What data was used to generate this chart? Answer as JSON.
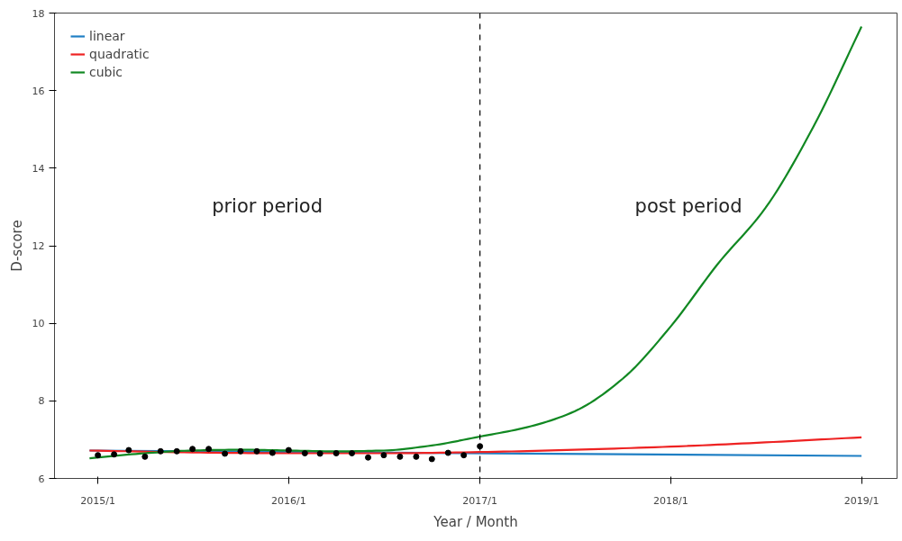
{
  "chart_data": {
    "type": "line",
    "xlabel": "Year / Month",
    "ylabel": "D-score",
    "xlim": [
      "2014-10-10",
      "2019-03-10"
    ],
    "ylim": [
      6,
      18
    ],
    "xticks": [
      {
        "value": "2015-01",
        "label": "2015/1"
      },
      {
        "value": "2016-01",
        "label": "2016/1"
      },
      {
        "value": "2017-01",
        "label": "2017/1"
      },
      {
        "value": "2018-01",
        "label": "2018/1"
      },
      {
        "value": "2019-01",
        "label": "2019/1"
      }
    ],
    "yticks": [
      6,
      8,
      10,
      12,
      14,
      16,
      18
    ],
    "grid": false,
    "legend": "top left",
    "line_style": "solid",
    "series": [
      {
        "type": "scatter",
        "color": "#000000",
        "marker": "circle",
        "x": [
          "2015-01",
          "2015-02",
          "2015-03",
          "2015-04",
          "2015-05",
          "2015-06",
          "2015-07",
          "2015-08",
          "2015-09",
          "2015-10",
          "2015-11",
          "2015-12",
          "2016-01",
          "2016-02",
          "2016-03",
          "2016-04",
          "2016-05",
          "2016-06",
          "2016-07",
          "2016-08",
          "2016-09",
          "2016-10",
          "2016-11",
          "2016-12",
          "2017-01"
        ],
        "values": [
          6.6,
          6.62,
          6.73,
          6.56,
          6.7,
          6.7,
          6.76,
          6.76,
          6.64,
          6.7,
          6.7,
          6.66,
          6.73,
          6.65,
          6.64,
          6.65,
          6.65,
          6.54,
          6.6,
          6.56,
          6.56,
          6.5,
          6.66,
          6.6,
          6.83
        ]
      },
      {
        "name": "linear",
        "color": "#1f7fc4",
        "x": [
          "2014-12-16",
          "2019-01"
        ],
        "values": [
          6.72,
          6.58
        ]
      },
      {
        "name": "quadratic",
        "color": "#ee2222",
        "x": [
          "2014-12-16",
          "2015-07",
          "2016-01",
          "2016-07",
          "2017-01",
          "2017-07",
          "2018-01",
          "2018-07",
          "2019-01"
        ],
        "values": [
          6.72,
          6.67,
          6.65,
          6.65,
          6.68,
          6.74,
          6.82,
          6.93,
          7.06
        ]
      },
      {
        "name": "cubic",
        "color": "#118822",
        "x": [
          "2014-12-16",
          "2015-04",
          "2015-07",
          "2015-10",
          "2016-01",
          "2016-04",
          "2016-07",
          "2016-10",
          "2017-01",
          "2017-04",
          "2017-07",
          "2017-10",
          "2018-01",
          "2018-04",
          "2018-07",
          "2018-10",
          "2019-01"
        ],
        "values": [
          6.52,
          6.65,
          6.72,
          6.74,
          6.72,
          6.7,
          6.72,
          6.85,
          7.08,
          7.32,
          7.73,
          8.57,
          9.92,
          11.53,
          12.97,
          15.07,
          17.65
        ]
      }
    ],
    "ref_lines": [
      {
        "axis": "x",
        "value": "2017-01",
        "color": "#000000",
        "line_style": "dashed"
      }
    ],
    "annotations": [
      "prior period",
      "post period"
    ]
  }
}
